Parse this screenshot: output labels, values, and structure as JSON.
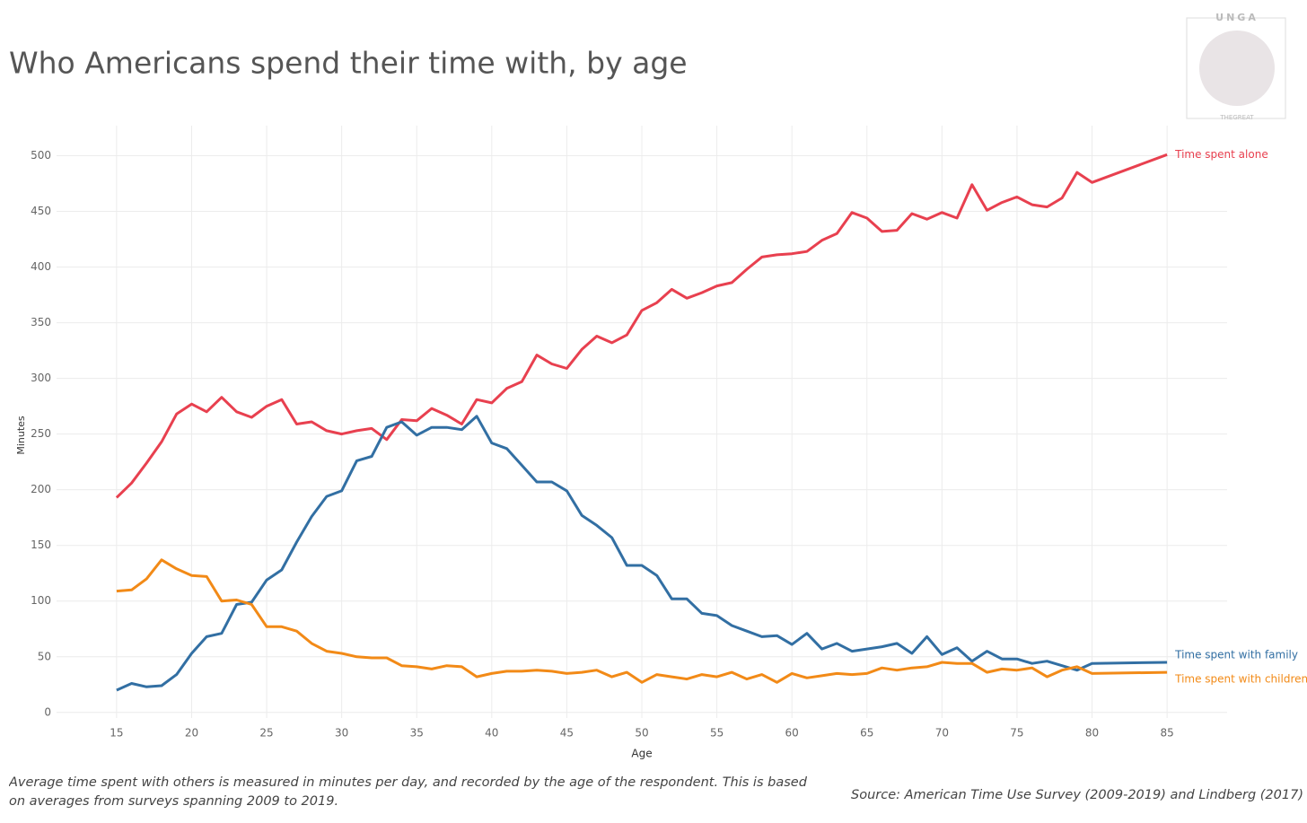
{
  "chart_data": {
    "type": "line",
    "title": "Who Americans spend their time with, by age",
    "x_label": "Age",
    "y_label": "Minutes",
    "x": [
      15,
      16,
      17,
      18,
      19,
      20,
      21,
      22,
      23,
      24,
      25,
      26,
      27,
      28,
      29,
      30,
      31,
      32,
      33,
      34,
      35,
      36,
      37,
      38,
      39,
      40,
      41,
      42,
      43,
      44,
      45,
      46,
      47,
      48,
      49,
      50,
      51,
      52,
      53,
      54,
      55,
      56,
      57,
      58,
      59,
      60,
      61,
      62,
      63,
      64,
      65,
      66,
      67,
      68,
      69,
      70,
      71,
      72,
      73,
      74,
      75,
      76,
      77,
      78,
      79,
      80,
      85
    ],
    "series": [
      {
        "name": "Time spent alone",
        "color": "#e8404f",
        "values": [
          193,
          206,
          224,
          243,
          268,
          277,
          270,
          283,
          270,
          265,
          275,
          281,
          259,
          261,
          253,
          250,
          253,
          255,
          245,
          263,
          262,
          273,
          267,
          259,
          281,
          278,
          291,
          297,
          321,
          313,
          309,
          326,
          338,
          332,
          339,
          361,
          368,
          380,
          372,
          377,
          383,
          386,
          398,
          409,
          411,
          412,
          414,
          424,
          430,
          449,
          444,
          432,
          433,
          448,
          443,
          449,
          444,
          474,
          451,
          458,
          463,
          456,
          454,
          462,
          485,
          476,
          501
        ]
      },
      {
        "name": "Time spent with family",
        "color": "#326fa3",
        "values": [
          20,
          26,
          23,
          24,
          34,
          53,
          68,
          71,
          97,
          99,
          119,
          128,
          153,
          176,
          194,
          199,
          226,
          230,
          256,
          261,
          249,
          256,
          256,
          254,
          266,
          242,
          237,
          222,
          207,
          207,
          199,
          177,
          168,
          157,
          132,
          132,
          123,
          102,
          102,
          89,
          87,
          78,
          73,
          68,
          69,
          61,
          71,
          57,
          62,
          55,
          57,
          59,
          62,
          53,
          68,
          52,
          58,
          46,
          55,
          48,
          48,
          44,
          46,
          42,
          38,
          44,
          45
        ]
      },
      {
        "name": "Time spent with children",
        "color": "#f28a17",
        "values": [
          109,
          110,
          120,
          137,
          129,
          123,
          122,
          100,
          101,
          97,
          77,
          77,
          73,
          62,
          55,
          53,
          50,
          49,
          49,
          42,
          41,
          39,
          42,
          41,
          32,
          35,
          37,
          37,
          38,
          37,
          35,
          36,
          38,
          32,
          36,
          27,
          34,
          32,
          30,
          34,
          32,
          36,
          30,
          34,
          27,
          35,
          31,
          33,
          35,
          34,
          35,
          40,
          38,
          40,
          41,
          45,
          44,
          44,
          36,
          39,
          38,
          40,
          32,
          38,
          41,
          35,
          36
        ]
      }
    ],
    "xlim": [
      11,
      89
    ],
    "ylim": [
      -5,
      527
    ],
    "xticks": [
      15,
      20,
      25,
      30,
      35,
      40,
      45,
      50,
      55,
      60,
      65,
      70,
      75,
      80,
      85
    ],
    "yticks": [
      0,
      50,
      100,
      150,
      200,
      250,
      300,
      350,
      400,
      450,
      500
    ],
    "grid": true,
    "note": "Average time spent with others is measured in minutes per day, and recorded by the age of the respondent. This is based on averages from surveys spanning 2009 to 2019.",
    "source": "Source: American Time Use Survey (2009-2019) and Lindberg (2017)"
  },
  "logo": {
    "top": "UNGA",
    "bottom": "THEGREAT"
  }
}
